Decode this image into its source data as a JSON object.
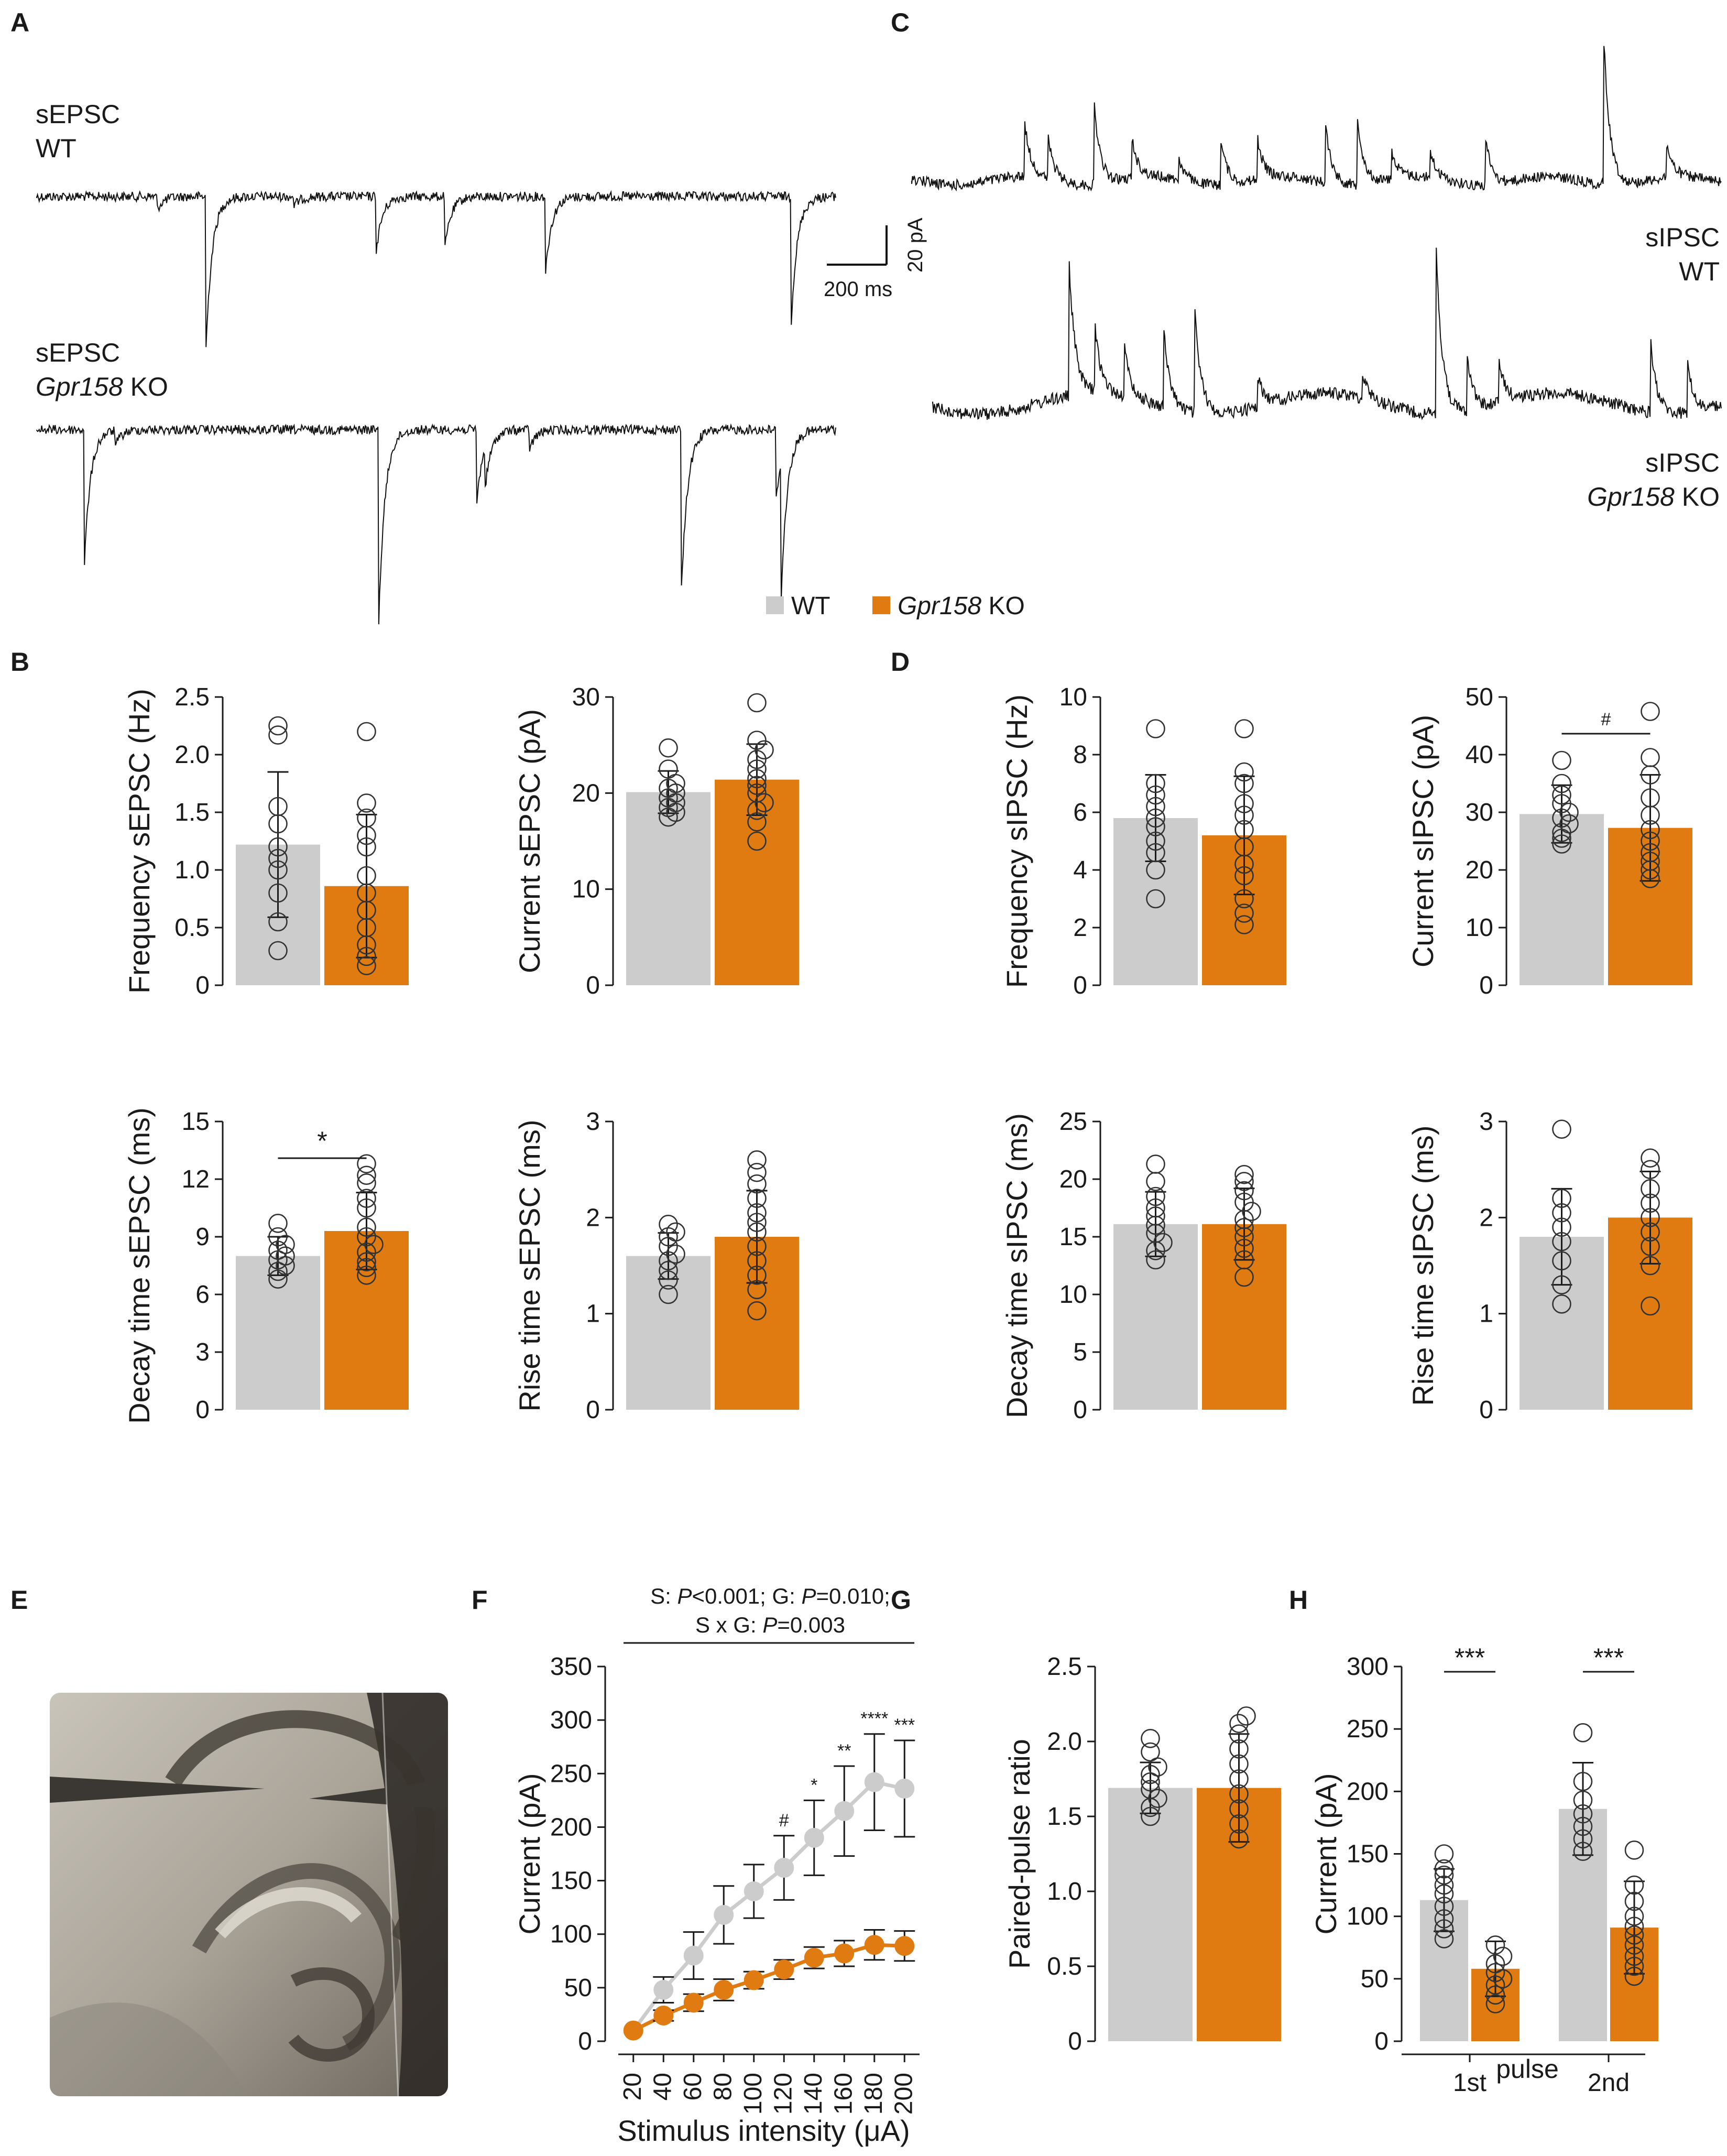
{
  "colors": {
    "wt": "#cccccc",
    "ko": "#e07b12",
    "axis": "#1a1a1a",
    "trace": "#111111"
  },
  "legend": {
    "wt_label": "WT",
    "ko_label_italic": "Gpr158",
    "ko_label_rest": " KO"
  },
  "panels": {
    "A": {
      "letter": "A",
      "trace1_line1": "sEPSC",
      "trace1_line2": "WT",
      "trace2_line1": "sEPSC",
      "trace2_italic": "Gpr158",
      "trace2_rest": " KO"
    },
    "C": {
      "letter": "C",
      "trace1_line1": "sIPSC",
      "trace1_line2": "WT",
      "trace2_line1": "sIPSC",
      "trace2_italic": "Gpr158",
      "trace2_rest": " KO"
    },
    "scale_bar": {
      "time": "200 ms",
      "current": "20 pA"
    },
    "B": {
      "letter": "B"
    },
    "D": {
      "letter": "D"
    },
    "E": {
      "letter": "E"
    },
    "F": {
      "letter": "F",
      "stats_line1_parts": [
        "S: ",
        "P",
        "<0.001; G: ",
        "P",
        "=0.010;"
      ],
      "stats_line2_parts": [
        "S x G: ",
        "P",
        "=0.003"
      ]
    },
    "G": {
      "letter": "G"
    },
    "H": {
      "letter": "H",
      "xlabel": "pulse"
    }
  },
  "chart_data": [
    {
      "id": "B1",
      "type": "bar",
      "ylabel": "Frequency sEPSC (Hz)",
      "ylim": [
        0,
        2.5
      ],
      "yticks": [
        "0",
        "0.5",
        "1.0",
        "1.5",
        "2.0",
        "2.5"
      ],
      "categories": [
        "WT",
        "Gpr158 KO"
      ],
      "values": [
        1.22,
        0.86
      ],
      "sd": [
        0.63,
        0.62
      ],
      "points": [
        [
          0.3,
          0.55,
          0.8,
          1.0,
          1.1,
          1.2,
          1.4,
          1.55,
          2.17,
          2.25
        ],
        [
          0.17,
          0.25,
          0.35,
          0.5,
          0.65,
          0.8,
          0.95,
          1.2,
          1.3,
          1.45,
          1.58,
          2.2
        ]
      ],
      "significance": ""
    },
    {
      "id": "B2",
      "type": "bar",
      "ylabel": "Current sEPSC (pA)",
      "ylim": [
        0,
        30
      ],
      "yticks": [
        "0",
        "10",
        "20",
        "30"
      ],
      "categories": [
        "WT",
        "Gpr158 KO"
      ],
      "values": [
        20.1,
        21.4
      ],
      "sd": [
        2.2,
        3.7
      ],
      "points": [
        [
          17.5,
          18,
          18.5,
          19,
          19.5,
          20,
          20.5,
          21,
          22.5,
          24.7
        ],
        [
          15,
          17,
          18.2,
          19,
          20,
          20.8,
          21.5,
          22.5,
          23.5,
          24.5,
          25.5,
          29.4
        ]
      ],
      "significance": ""
    },
    {
      "id": "B3",
      "type": "bar",
      "ylabel": "Decay time sEPSC (ms)",
      "ylim": [
        0,
        15
      ],
      "yticks": [
        "0",
        "3",
        "6",
        "9",
        "12",
        "15"
      ],
      "categories": [
        "WT",
        "Gpr158 KO"
      ],
      "values": [
        8.0,
        9.3
      ],
      "sd": [
        1.0,
        2.0
      ],
      "points": [
        [
          6.8,
          7.2,
          7.5,
          7.8,
          8.0,
          8.3,
          8.6,
          9.0,
          9.7
        ],
        [
          7.0,
          7.4,
          7.7,
          8.2,
          8.6,
          9.0,
          9.5,
          10.5,
          11.0,
          11.8,
          12.2,
          12.8
        ]
      ],
      "significance": "*"
    },
    {
      "id": "B4",
      "type": "bar",
      "ylabel": "Rise time sEPSC (ms)",
      "ylim": [
        0,
        3
      ],
      "yticks": [
        "0",
        "1",
        "2",
        "3"
      ],
      "categories": [
        "WT",
        "Gpr158 KO"
      ],
      "values": [
        1.6,
        1.8
      ],
      "sd": [
        0.24,
        0.48
      ],
      "points": [
        [
          1.2,
          1.35,
          1.45,
          1.55,
          1.62,
          1.7,
          1.8,
          1.85,
          1.93
        ],
        [
          1.03,
          1.25,
          1.4,
          1.55,
          1.7,
          1.85,
          1.95,
          2.05,
          2.2,
          2.35,
          2.47,
          2.6
        ]
      ],
      "significance": ""
    },
    {
      "id": "D1",
      "type": "bar",
      "ylabel": "Frequency sIPSC (Hz)",
      "ylim": [
        0,
        10
      ],
      "yticks": [
        "0",
        "2",
        "4",
        "6",
        "8",
        "10"
      ],
      "categories": [
        "WT",
        "Gpr158 KO"
      ],
      "values": [
        5.8,
        5.2
      ],
      "sd": [
        1.5,
        2.05
      ],
      "points": [
        [
          3.0,
          4.0,
          4.6,
          5.0,
          5.5,
          5.8,
          6.2,
          6.6,
          7.0,
          8.9
        ],
        [
          2.1,
          2.5,
          3.0,
          3.8,
          4.2,
          4.8,
          5.4,
          5.9,
          6.3,
          7.0,
          7.4,
          8.9
        ]
      ],
      "significance": ""
    },
    {
      "id": "D2",
      "type": "bar",
      "ylabel": "Current sIPSC (pA)",
      "ylim": [
        0,
        50
      ],
      "yticks": [
        "0",
        "10",
        "20",
        "30",
        "40",
        "50"
      ],
      "categories": [
        "WT",
        "Gpr158 KO"
      ],
      "values": [
        29.7,
        27.3
      ],
      "sd": [
        5.0,
        9.2
      ],
      "points": [
        [
          24.5,
          25.5,
          26.5,
          28,
          29,
          30,
          31.5,
          33,
          35,
          39
        ],
        [
          18.5,
          20,
          21.5,
          23,
          25,
          27,
          29.5,
          32.5,
          36.5,
          39.5,
          47.5
        ]
      ],
      "significance": "#"
    },
    {
      "id": "D3",
      "type": "bar",
      "ylabel": "Decay time sIPSC (ms)",
      "ylim": [
        0,
        25
      ],
      "yticks": [
        "0",
        "5",
        "10",
        "15",
        "20",
        "25"
      ],
      "categories": [
        "WT",
        "Gpr158 KO"
      ],
      "values": [
        16.1,
        16.1
      ],
      "sd": [
        2.8,
        3.1
      ],
      "points": [
        [
          13.0,
          13.8,
          14.5,
          15.3,
          16.0,
          16.8,
          17.5,
          18.5,
          19.8,
          21.3
        ],
        [
          11.5,
          13.0,
          14.0,
          15.0,
          15.8,
          16.5,
          17.2,
          18.0,
          19.0,
          19.8,
          20.4
        ]
      ],
      "significance": ""
    },
    {
      "id": "D4",
      "type": "bar",
      "ylabel": "Rise time sIPSC (ms)",
      "ylim": [
        0,
        3
      ],
      "yticks": [
        "0",
        "1",
        "2",
        "3"
      ],
      "categories": [
        "WT",
        "Gpr158 KO"
      ],
      "values": [
        1.8,
        2.0
      ],
      "sd": [
        0.5,
        0.48
      ],
      "points": [
        [
          1.1,
          1.3,
          1.55,
          1.75,
          1.9,
          2.05,
          2.2,
          2.92
        ],
        [
          1.08,
          1.5,
          1.7,
          1.85,
          2.0,
          2.15,
          2.3,
          2.5,
          2.62
        ]
      ],
      "significance": ""
    },
    {
      "id": "F",
      "type": "line",
      "xlabel": "Stimulus intensity (μA)",
      "ylabel": "Current (pA)",
      "xlim": [
        10,
        210
      ],
      "ylim": [
        0,
        350
      ],
      "x": [
        20,
        40,
        60,
        80,
        100,
        120,
        140,
        160,
        180,
        200
      ],
      "xticks": [
        "20",
        "40",
        "60",
        "80",
        "100",
        "120",
        "140",
        "160",
        "180",
        "200"
      ],
      "yticks": [
        "0",
        "50",
        "100",
        "150",
        "200",
        "250",
        "300",
        "350"
      ],
      "series": [
        {
          "name": "WT",
          "values": [
            10,
            48,
            80,
            118,
            140,
            162,
            190,
            215,
            242,
            236
          ],
          "err": [
            5,
            12,
            22,
            27,
            25,
            30,
            35,
            42,
            45,
            45
          ]
        },
        {
          "name": "Gpr158 KO",
          "values": [
            10,
            24,
            36,
            48,
            57,
            67,
            78,
            82,
            90,
            89
          ],
          "err": [
            3,
            5,
            8,
            10,
            8,
            9,
            10,
            12,
            14,
            14
          ]
        }
      ],
      "annotations": [
        "",
        "",
        "",
        "",
        "",
        "#",
        "*",
        "**",
        "****",
        "***"
      ]
    },
    {
      "id": "G",
      "type": "bar",
      "ylabel": "Paired-pulse ratio",
      "ylim": [
        0,
        2.5
      ],
      "yticks": [
        "0",
        "0.5",
        "1.0",
        "1.5",
        "2.0",
        "2.5"
      ],
      "categories": [
        "WT",
        "Gpr158 KO"
      ],
      "values": [
        1.69,
        1.69
      ],
      "sd": [
        0.17,
        0.36
      ],
      "points": [
        [
          1.5,
          1.56,
          1.62,
          1.68,
          1.73,
          1.78,
          1.83,
          1.93,
          2.02
        ],
        [
          1.35,
          1.45,
          1.55,
          1.65,
          1.75,
          1.85,
          1.95,
          2.05,
          2.12,
          2.17
        ]
      ],
      "significance": ""
    },
    {
      "id": "H",
      "type": "bar",
      "xlabel": "pulse",
      "ylabel": "Current (pA)",
      "ylim": [
        0,
        300
      ],
      "yticks": [
        "0",
        "50",
        "100",
        "150",
        "200",
        "250",
        "300"
      ],
      "categories": [
        "1st",
        "2nd"
      ],
      "series": [
        {
          "name": "WT",
          "values": [
            113,
            186
          ],
          "sd": [
            25,
            37
          ],
          "points": [
            [
              82,
              90,
              98,
              108,
              118,
              125,
              133,
              138,
              150
            ],
            [
              152,
              162,
              172,
              182,
              193,
              208,
              247
            ]
          ]
        },
        {
          "name": "Gpr158 KO",
          "values": [
            58,
            91
          ],
          "sd": [
            22,
            37
          ],
          "points": [
            [
              30,
              37,
              45,
              50,
              55,
              62,
              68,
              77
            ],
            [
              52,
              60,
              68,
              77,
              85,
              92,
              100,
              112,
              125,
              153
            ]
          ]
        }
      ],
      "significance": [
        "***",
        "***"
      ]
    }
  ]
}
